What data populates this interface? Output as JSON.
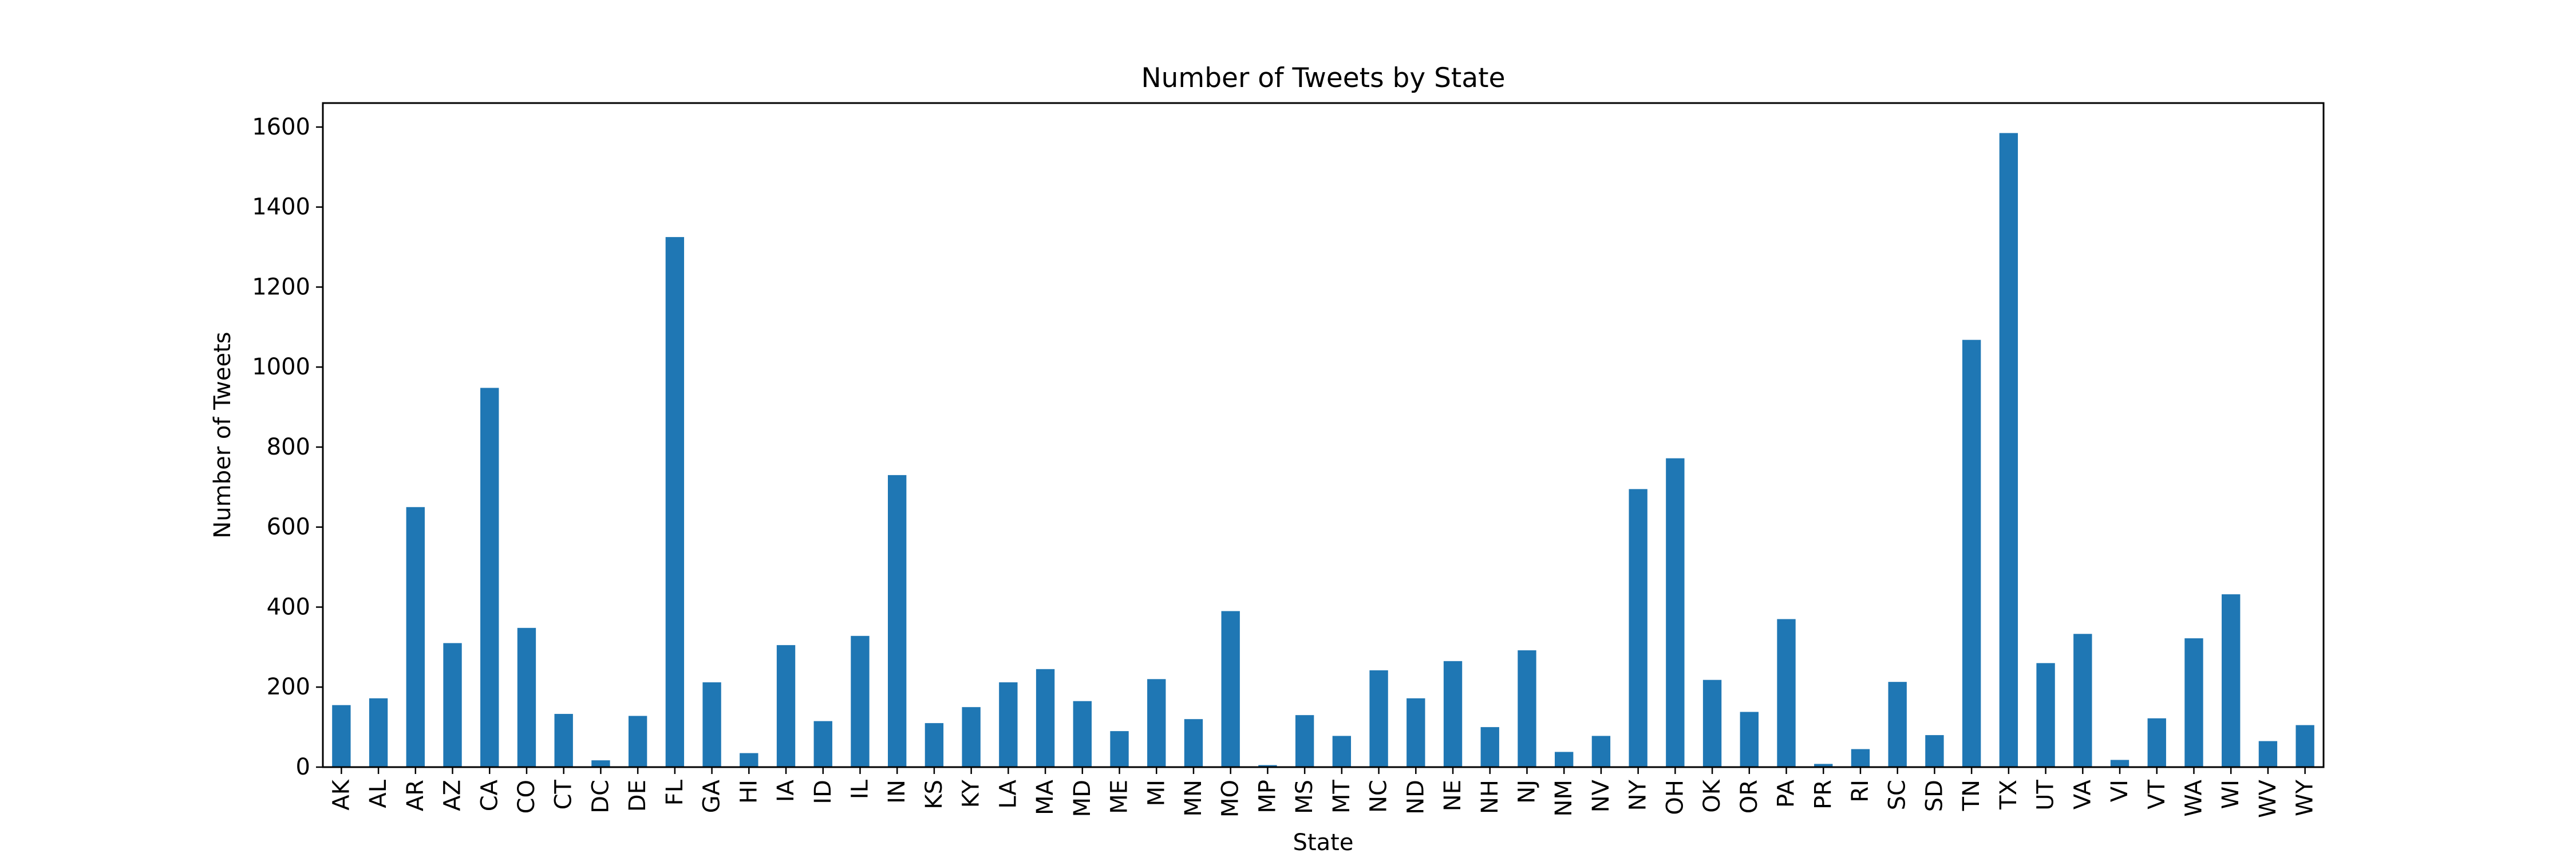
{
  "chart_data": {
    "type": "bar",
    "title": "Number of Tweets by State",
    "xlabel": "State",
    "ylabel": "Number of Tweets",
    "ylim": [
      0,
      1660
    ],
    "yticks": [
      0,
      200,
      400,
      600,
      800,
      1000,
      1200,
      1400,
      1600
    ],
    "grid": false,
    "bar_color": "#1f77b4",
    "categories": [
      "AK",
      "AL",
      "AR",
      "AZ",
      "CA",
      "CO",
      "CT",
      "DC",
      "DE",
      "FL",
      "GA",
      "HI",
      "IA",
      "ID",
      "IL",
      "IN",
      "KS",
      "KY",
      "LA",
      "MA",
      "MD",
      "ME",
      "MI",
      "MN",
      "MO",
      "MP",
      "MS",
      "MT",
      "NC",
      "ND",
      "NE",
      "NH",
      "NJ",
      "NM",
      "NV",
      "NY",
      "OH",
      "OK",
      "OR",
      "PA",
      "PR",
      "RI",
      "SC",
      "SD",
      "TN",
      "TX",
      "UT",
      "VA",
      "VI",
      "VT",
      "WA",
      "WI",
      "WV",
      "WY"
    ],
    "values": [
      155,
      172,
      650,
      310,
      948,
      348,
      133,
      17,
      128,
      1325,
      212,
      35,
      305,
      115,
      328,
      730,
      110,
      150,
      212,
      245,
      165,
      90,
      220,
      120,
      390,
      5,
      130,
      78,
      242,
      172,
      265,
      100,
      292,
      38,
      78,
      695,
      772,
      218,
      138,
      370,
      8,
      45,
      213,
      80,
      1068,
      1585,
      260,
      333,
      18,
      122,
      322,
      432,
      65,
      105
    ]
  }
}
